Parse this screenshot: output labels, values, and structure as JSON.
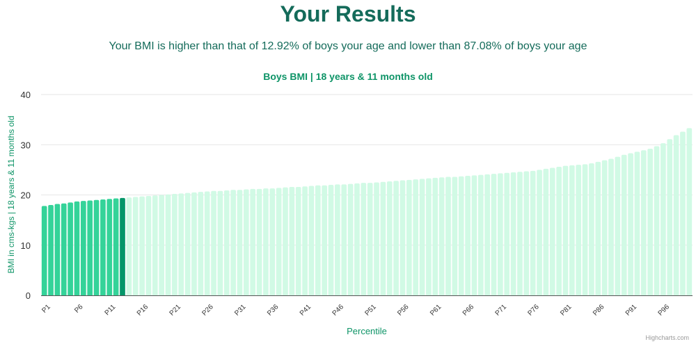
{
  "header": {
    "title": "Your Results",
    "subtitle": "Your BMI is higher than that of 12.92% of boys your age and lower than 87.08% of boys your age"
  },
  "credit": "Highcharts.com",
  "colors": {
    "title": "#146b5a",
    "chart_title": "#0e9467",
    "below_user": "#34d399",
    "user_bar": "#059669",
    "above_user": "#d1fae5",
    "grid": "#e6e6e6",
    "axis_label": "#0e9467"
  },
  "chart_data": {
    "type": "bar",
    "title": "Boys BMI | 18 years & 11 months old",
    "xlabel": "Percentile",
    "ylabel": "BMI in cms-kgs | 18 years & 11 months old",
    "ylim": [
      0,
      40
    ],
    "yticks": [
      0,
      10,
      20,
      30,
      40
    ],
    "grid": true,
    "highlight_index": 12,
    "categories": [
      "P1",
      "P2",
      "P3",
      "P4",
      "P5",
      "P6",
      "P7",
      "P8",
      "P9",
      "P10",
      "P11",
      "P12",
      "P13",
      "P14",
      "P15",
      "P16",
      "P17",
      "P18",
      "P19",
      "P20",
      "P21",
      "P22",
      "P23",
      "P24",
      "P25",
      "P26",
      "P27",
      "P28",
      "P29",
      "P30",
      "P31",
      "P32",
      "P33",
      "P34",
      "P35",
      "P36",
      "P37",
      "P38",
      "P39",
      "P40",
      "P41",
      "P42",
      "P43",
      "P44",
      "P45",
      "P46",
      "P47",
      "P48",
      "P49",
      "P50",
      "P51",
      "P52",
      "P53",
      "P54",
      "P55",
      "P56",
      "P57",
      "P58",
      "P59",
      "P60",
      "P61",
      "P62",
      "P63",
      "P64",
      "P65",
      "P66",
      "P67",
      "P68",
      "P69",
      "P70",
      "P71",
      "P72",
      "P73",
      "P74",
      "P75",
      "P76",
      "P77",
      "P78",
      "P79",
      "P80",
      "P81",
      "P82",
      "P83",
      "P84",
      "P85",
      "P86",
      "P87",
      "P88",
      "P89",
      "P90",
      "P91",
      "P92",
      "P93",
      "P94",
      "P95",
      "P96",
      "P97",
      "P98",
      "P99",
      "P100"
    ],
    "visible_ticks": [
      "P1",
      "P6",
      "P11",
      "P16",
      "P21",
      "P26",
      "P31",
      "P36",
      "P41",
      "P46",
      "P51",
      "P56",
      "P61",
      "P66",
      "P71",
      "P76",
      "P81",
      "P86",
      "P91",
      "P96"
    ],
    "values": [
      17.8,
      18.0,
      18.2,
      18.3,
      18.5,
      18.7,
      18.8,
      18.9,
      19.0,
      19.1,
      19.2,
      19.3,
      19.4,
      19.5,
      19.6,
      19.7,
      19.8,
      19.9,
      20.0,
      20.1,
      20.2,
      20.3,
      20.4,
      20.5,
      20.6,
      20.7,
      20.8,
      20.8,
      20.9,
      21.0,
      21.0,
      21.1,
      21.2,
      21.2,
      21.3,
      21.3,
      21.4,
      21.5,
      21.6,
      21.6,
      21.7,
      21.8,
      21.9,
      21.9,
      22.0,
      22.1,
      22.1,
      22.2,
      22.3,
      22.4,
      22.4,
      22.5,
      22.6,
      22.7,
      22.8,
      22.9,
      23.0,
      23.1,
      23.2,
      23.3,
      23.4,
      23.5,
      23.6,
      23.6,
      23.7,
      23.8,
      23.9,
      24.0,
      24.1,
      24.2,
      24.3,
      24.4,
      24.5,
      24.6,
      24.7,
      24.8,
      25.0,
      25.2,
      25.4,
      25.6,
      25.8,
      25.9,
      26.0,
      26.1,
      26.3,
      26.6,
      26.9,
      27.2,
      27.6,
      28.0,
      28.3,
      28.6,
      28.9,
      29.2,
      29.7,
      30.3,
      31.1,
      31.9,
      32.6,
      33.3
    ]
  }
}
